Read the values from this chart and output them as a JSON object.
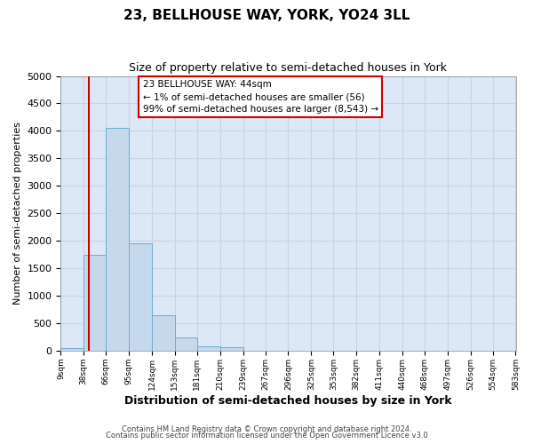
{
  "title": "23, BELLHOUSE WAY, YORK, YO24 3LL",
  "subtitle": "Size of property relative to semi-detached houses in York",
  "xlabel": "Distribution of semi-detached houses by size in York",
  "ylabel": "Number of semi-detached properties",
  "footnote1": "Contains HM Land Registry data © Crown copyright and database right 2024.",
  "footnote2": "Contains public sector information licensed under the Open Government Licence v3.0",
  "bar_edges": [
    9,
    38,
    66,
    95,
    124,
    153,
    181,
    210,
    239,
    267,
    296,
    325,
    353,
    382,
    411,
    440,
    468,
    497,
    526,
    554,
    583
  ],
  "bar_heights": [
    50,
    1750,
    4050,
    1950,
    650,
    240,
    80,
    60,
    0,
    0,
    0,
    0,
    0,
    0,
    0,
    0,
    0,
    0,
    0,
    0
  ],
  "bar_color": "#c5d8ec",
  "bar_edge_color": "#6aaed6",
  "property_line_x": 44,
  "property_line_color": "#cc0000",
  "ylim": [
    0,
    5000
  ],
  "yticks": [
    0,
    500,
    1000,
    1500,
    2000,
    2500,
    3000,
    3500,
    4000,
    4500,
    5000
  ],
  "xtick_labels": [
    "9sqm",
    "38sqm",
    "66sqm",
    "95sqm",
    "124sqm",
    "153sqm",
    "181sqm",
    "210sqm",
    "239sqm",
    "267sqm",
    "296sqm",
    "325sqm",
    "353sqm",
    "382sqm",
    "411sqm",
    "440sqm",
    "468sqm",
    "497sqm",
    "526sqm",
    "554sqm",
    "583sqm"
  ],
  "annotation_line1": "23 BELLHOUSE WAY: 44sqm",
  "annotation_line2": "← 1% of semi-detached houses are smaller (56)",
  "annotation_line3": "99% of semi-detached houses are larger (8,543) →",
  "box_edge_color": "#cc0000",
  "grid_color": "#c8d4e4",
  "bg_color": "#dce8f5"
}
